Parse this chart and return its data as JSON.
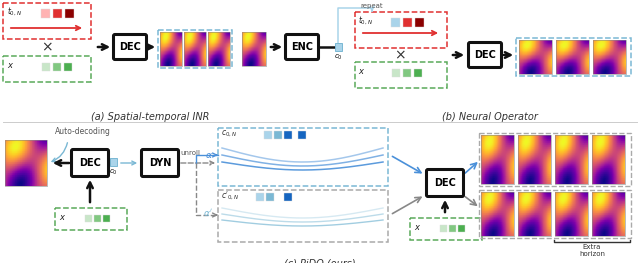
{
  "title_a": "(a) Spatial-temporal INR",
  "title_b": "(b) Neural Operator",
  "title_c": "(c) PiDO (ours)",
  "red_dash_color": "#e03030",
  "green_dash_color": "#5aaa5a",
  "blue_dash_color": "#7ab8d4",
  "gray_dash_color": "#aaaaaa",
  "box_color": "#111111",
  "caption_fontsize": 7.0,
  "colors_t_red": [
    "#ffb3b3",
    "#e03030",
    "#8b0000"
  ],
  "colors_x_green": [
    "#c8e6c8",
    "#81c881",
    "#4CAF50"
  ],
  "colors_blue_sq": [
    "#aad4ea",
    "#7ab8d4",
    "#1565C0"
  ]
}
